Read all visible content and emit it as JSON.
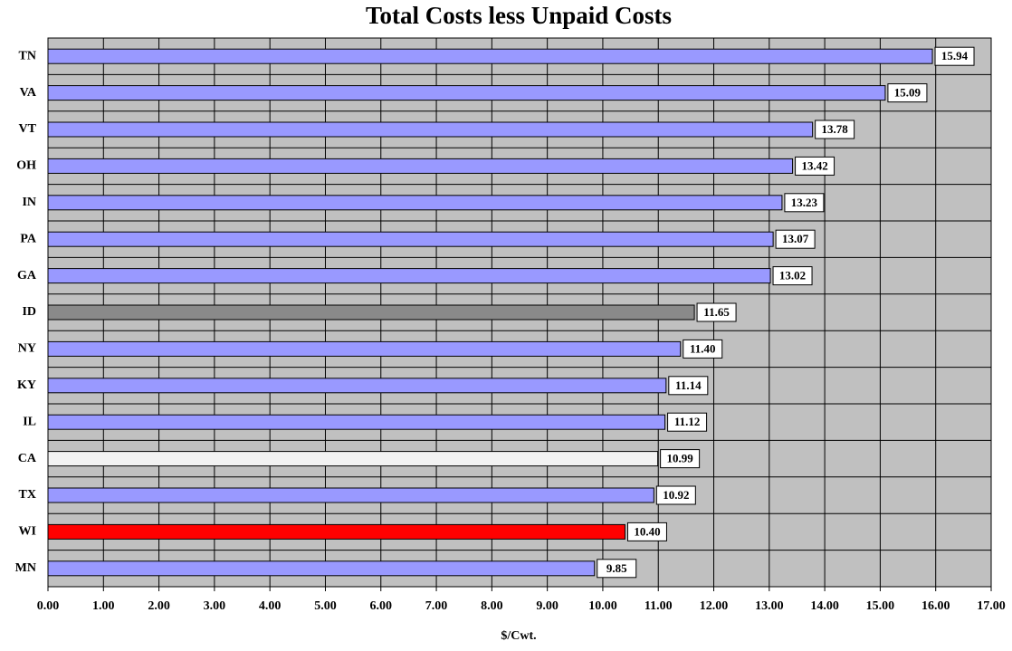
{
  "chart_data": {
    "type": "bar",
    "orientation": "horizontal",
    "title": "Total Costs less Unpaid Costs",
    "xlabel": "$/Cwt.",
    "categories": [
      "TN",
      "VA",
      "VT",
      "OH",
      "IN",
      "PA",
      "GA",
      "ID",
      "NY",
      "KY",
      "IL",
      "CA",
      "TX",
      "WI",
      "MN"
    ],
    "values": [
      15.94,
      15.09,
      13.78,
      13.42,
      13.23,
      13.07,
      13.02,
      11.65,
      11.4,
      11.14,
      11.12,
      10.99,
      10.92,
      10.4,
      9.85
    ],
    "value_labels": [
      "15.94",
      "15.09",
      "13.78",
      "13.42",
      "13.23",
      "13.07",
      "13.02",
      "11.65",
      "11.40",
      "11.14",
      "11.12",
      "10.99",
      "10.92",
      "10.40",
      "9.85"
    ],
    "colors": [
      "#9999ff",
      "#9999ff",
      "#9999ff",
      "#9999ff",
      "#9999ff",
      "#9999ff",
      "#9999ff",
      "#8a8a8a",
      "#9999ff",
      "#9999ff",
      "#9999ff",
      "#f2f2f2",
      "#9999ff",
      "#ff0000",
      "#9999ff"
    ],
    "xlim": [
      0,
      17
    ],
    "xticks": [
      {
        "value": 0,
        "label": "0.00"
      },
      {
        "value": 1,
        "label": "1.00"
      },
      {
        "value": 2,
        "label": "2.00"
      },
      {
        "value": 3,
        "label": "3.00"
      },
      {
        "value": 4,
        "label": "4.00"
      },
      {
        "value": 5,
        "label": "5.00"
      },
      {
        "value": 6,
        "label": "6.00"
      },
      {
        "value": 7,
        "label": "7.00"
      },
      {
        "value": 8,
        "label": "8.00"
      },
      {
        "value": 9,
        "label": "9.00"
      },
      {
        "value": 10,
        "label": "10.00"
      },
      {
        "value": 11,
        "label": "11.00"
      },
      {
        "value": 12,
        "label": "12.00"
      },
      {
        "value": 13,
        "label": "13.00"
      },
      {
        "value": 14,
        "label": "14.00"
      },
      {
        "value": 15,
        "label": "15.00"
      },
      {
        "value": 16,
        "label": "16.00"
      },
      {
        "value": 17,
        "label": "17.00"
      }
    ],
    "grid": true
  }
}
